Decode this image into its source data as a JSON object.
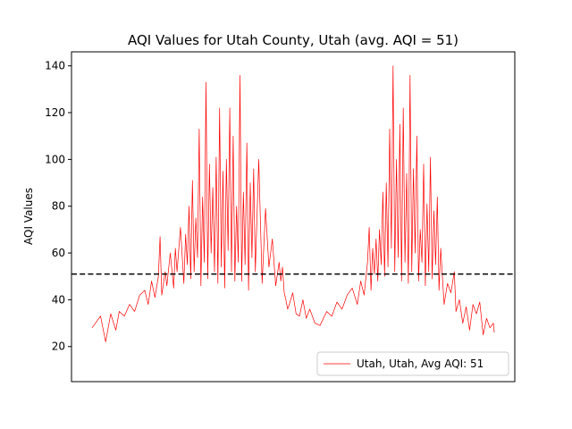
{
  "chart_data": {
    "type": "line",
    "title": "AQI Values for Utah County, Utah (avg. AQI = 51)",
    "xlabel": "",
    "ylabel": "AQI Values",
    "ylim": [
      5,
      146
    ],
    "yticks": [
      20,
      40,
      60,
      80,
      100,
      120,
      140
    ],
    "xticks_visible": false,
    "grid": false,
    "legend_position": "lower-right",
    "average_line": {
      "value": 51,
      "style": "dashed",
      "color": "#000000"
    },
    "series": [
      {
        "name": "Utah, Utah, Avg AQI: 51",
        "color": "#ff0000",
        "x": [
          0,
          10,
          16,
          22,
          28,
          32,
          38,
          44,
          50,
          56,
          62,
          66,
          70,
          74,
          78,
          80,
          82,
          86,
          88,
          92,
          96,
          98,
          100,
          104,
          108,
          110,
          112,
          114,
          116,
          118,
          120,
          122,
          124,
          126,
          128,
          130,
          132,
          134,
          136,
          138,
          140,
          142,
          144,
          146,
          148,
          150,
          152,
          154,
          156,
          158,
          160,
          162,
          164,
          166,
          168,
          170,
          172,
          174,
          176,
          178,
          180,
          182,
          184,
          186,
          188,
          190,
          192,
          196,
          200,
          204,
          208,
          212,
          216,
          220,
          222,
          224,
          226,
          228,
          230,
          232,
          236,
          240,
          244,
          248,
          252,
          256,
          262,
          268,
          272,
          276,
          282,
          288,
          294,
          300,
          306,
          312,
          316,
          320,
          324,
          326,
          328,
          330,
          332,
          334,
          336,
          338,
          340,
          342,
          344,
          346,
          348,
          350,
          352,
          354,
          356,
          358,
          360,
          362,
          364,
          366,
          368,
          370,
          372,
          374,
          376,
          378,
          380,
          382,
          384,
          386,
          388,
          390,
          392,
          394,
          396,
          398,
          400,
          402,
          404,
          406,
          408,
          410,
          414,
          418,
          422,
          426,
          428,
          432,
          436,
          440,
          444,
          448,
          452,
          456,
          460,
          464,
          468,
          472,
          473
        ],
        "values": [
          28,
          33,
          22,
          34,
          27,
          35,
          33,
          38,
          35,
          42,
          44,
          38,
          48,
          41,
          50,
          67,
          42,
          52,
          46,
          60,
          45,
          62,
          52,
          71,
          47,
          68,
          55,
          80,
          49,
          91,
          52,
          75,
          58,
          113,
          46,
          84,
          56,
          133,
          49,
          98,
          60,
          88,
          52,
          101,
          47,
          122,
          54,
          95,
          45,
          100,
          61,
          122,
          52,
          110,
          48,
          80,
          56,
          136,
          48,
          86,
          55,
          107,
          44,
          90,
          58,
          96,
          52,
          100,
          47,
          79,
          54,
          66,
          46,
          56,
          48,
          54,
          43,
          40,
          36,
          38,
          43,
          34,
          33,
          40,
          32,
          36,
          30,
          29,
          32,
          35,
          33,
          39,
          36,
          42,
          45,
          38,
          48,
          42,
          56,
          71,
          44,
          62,
          51,
          66,
          48,
          70,
          55,
          86,
          50,
          90,
          54,
          113,
          62,
          140,
          52,
          100,
          58,
          115,
          48,
          122,
          56,
          94,
          47,
          136,
          52,
          96,
          60,
          110,
          48,
          70,
          56,
          98,
          46,
          81,
          52,
          101,
          49,
          78,
          55,
          84,
          44,
          62,
          38,
          47,
          43,
          52,
          35,
          40,
          30,
          37,
          27,
          38,
          34,
          39,
          25,
          32,
          28,
          30,
          26
        ]
      }
    ]
  }
}
